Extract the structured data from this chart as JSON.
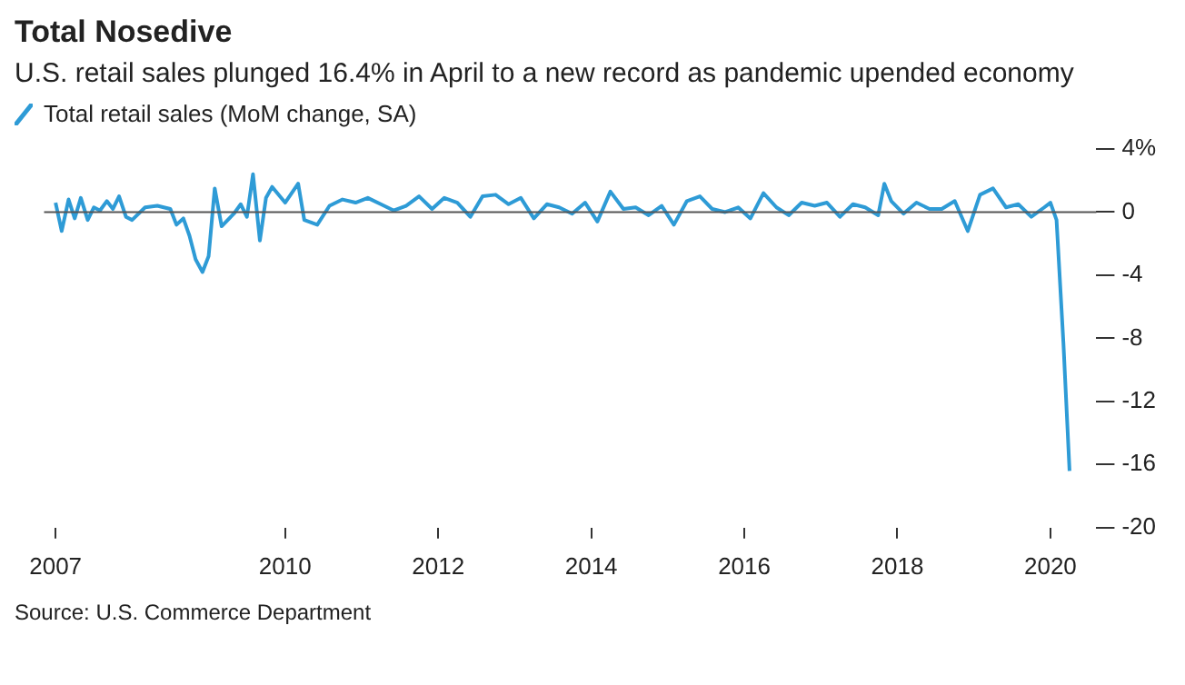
{
  "chart_data": {
    "type": "line",
    "title": "Total Nosedive",
    "subtitle": "U.S. retail sales plunged 16.4% in April to a new record as pandemic upended economy",
    "x": [
      2007.0,
      2007.08,
      2007.17,
      2007.25,
      2007.33,
      2007.42,
      2007.5,
      2007.58,
      2007.67,
      2007.75,
      2007.83,
      2007.92,
      2008.0,
      2008.17,
      2008.33,
      2008.5,
      2008.58,
      2008.67,
      2008.75,
      2008.83,
      2008.92,
      2009.0,
      2009.08,
      2009.17,
      2009.33,
      2009.42,
      2009.5,
      2009.58,
      2009.67,
      2009.75,
      2009.83,
      2010.0,
      2010.17,
      2010.25,
      2010.42,
      2010.58,
      2010.75,
      2010.92,
      2011.08,
      2011.25,
      2011.42,
      2011.58,
      2011.75,
      2011.92,
      2012.08,
      2012.25,
      2012.42,
      2012.58,
      2012.75,
      2012.92,
      2013.08,
      2013.25,
      2013.42,
      2013.58,
      2013.75,
      2013.92,
      2014.08,
      2014.25,
      2014.42,
      2014.58,
      2014.75,
      2014.92,
      2015.08,
      2015.25,
      2015.42,
      2015.58,
      2015.75,
      2015.92,
      2016.08,
      2016.25,
      2016.42,
      2016.58,
      2016.75,
      2016.92,
      2017.08,
      2017.25,
      2017.42,
      2017.58,
      2017.75,
      2017.83,
      2017.92,
      2018.08,
      2018.25,
      2018.42,
      2018.58,
      2018.75,
      2018.92,
      2019.08,
      2019.25,
      2019.42,
      2019.58,
      2019.75,
      2019.92,
      2020.0,
      2020.08,
      2020.17,
      2020.25
    ],
    "series": [
      {
        "name": "Total retail sales (MoM change, SA)",
        "color": "#2e9bd6",
        "values": [
          0.6,
          -1.2,
          0.8,
          -0.4,
          0.9,
          -0.5,
          0.3,
          0.1,
          0.7,
          0.2,
          1.0,
          -0.3,
          -0.5,
          0.3,
          0.4,
          0.2,
          -0.8,
          -0.4,
          -1.5,
          -3.0,
          -3.8,
          -2.8,
          1.5,
          -0.9,
          -0.1,
          0.5,
          -0.3,
          2.4,
          -1.8,
          0.9,
          1.6,
          0.6,
          1.8,
          -0.5,
          -0.8,
          0.4,
          0.8,
          0.6,
          0.9,
          0.5,
          0.1,
          0.4,
          1.0,
          0.2,
          0.9,
          0.6,
          -0.3,
          1.0,
          1.1,
          0.5,
          0.9,
          -0.4,
          0.5,
          0.3,
          -0.1,
          0.6,
          -0.6,
          1.3,
          0.2,
          0.3,
          -0.2,
          0.4,
          -0.8,
          0.7,
          1.0,
          0.2,
          0.0,
          0.3,
          -0.4,
          1.2,
          0.3,
          -0.2,
          0.6,
          0.4,
          0.6,
          -0.3,
          0.5,
          0.3,
          -0.2,
          1.8,
          0.7,
          -0.1,
          0.6,
          0.2,
          0.2,
          0.7,
          -1.2,
          1.1,
          1.5,
          0.3,
          0.5,
          -0.3,
          0.3,
          0.6,
          -0.5,
          -8.3,
          -16.4
        ]
      }
    ],
    "xlim": [
      2006.85,
      2020.6
    ],
    "xticks": [
      2007,
      2010,
      2012,
      2014,
      2016,
      2018,
      2020
    ],
    "ylim": [
      -20,
      4
    ],
    "yticks": [
      {
        "value": 4,
        "label": "4%"
      },
      0,
      -4,
      -8,
      -12,
      -16,
      -20
    ],
    "ref_lines": [
      {
        "axis": "y",
        "value": 0,
        "color": "#555555"
      }
    ],
    "legend": "top left",
    "marker": "none",
    "line_style": "solid",
    "annotations": [
      "Source: U.S. Commerce Department"
    ]
  }
}
